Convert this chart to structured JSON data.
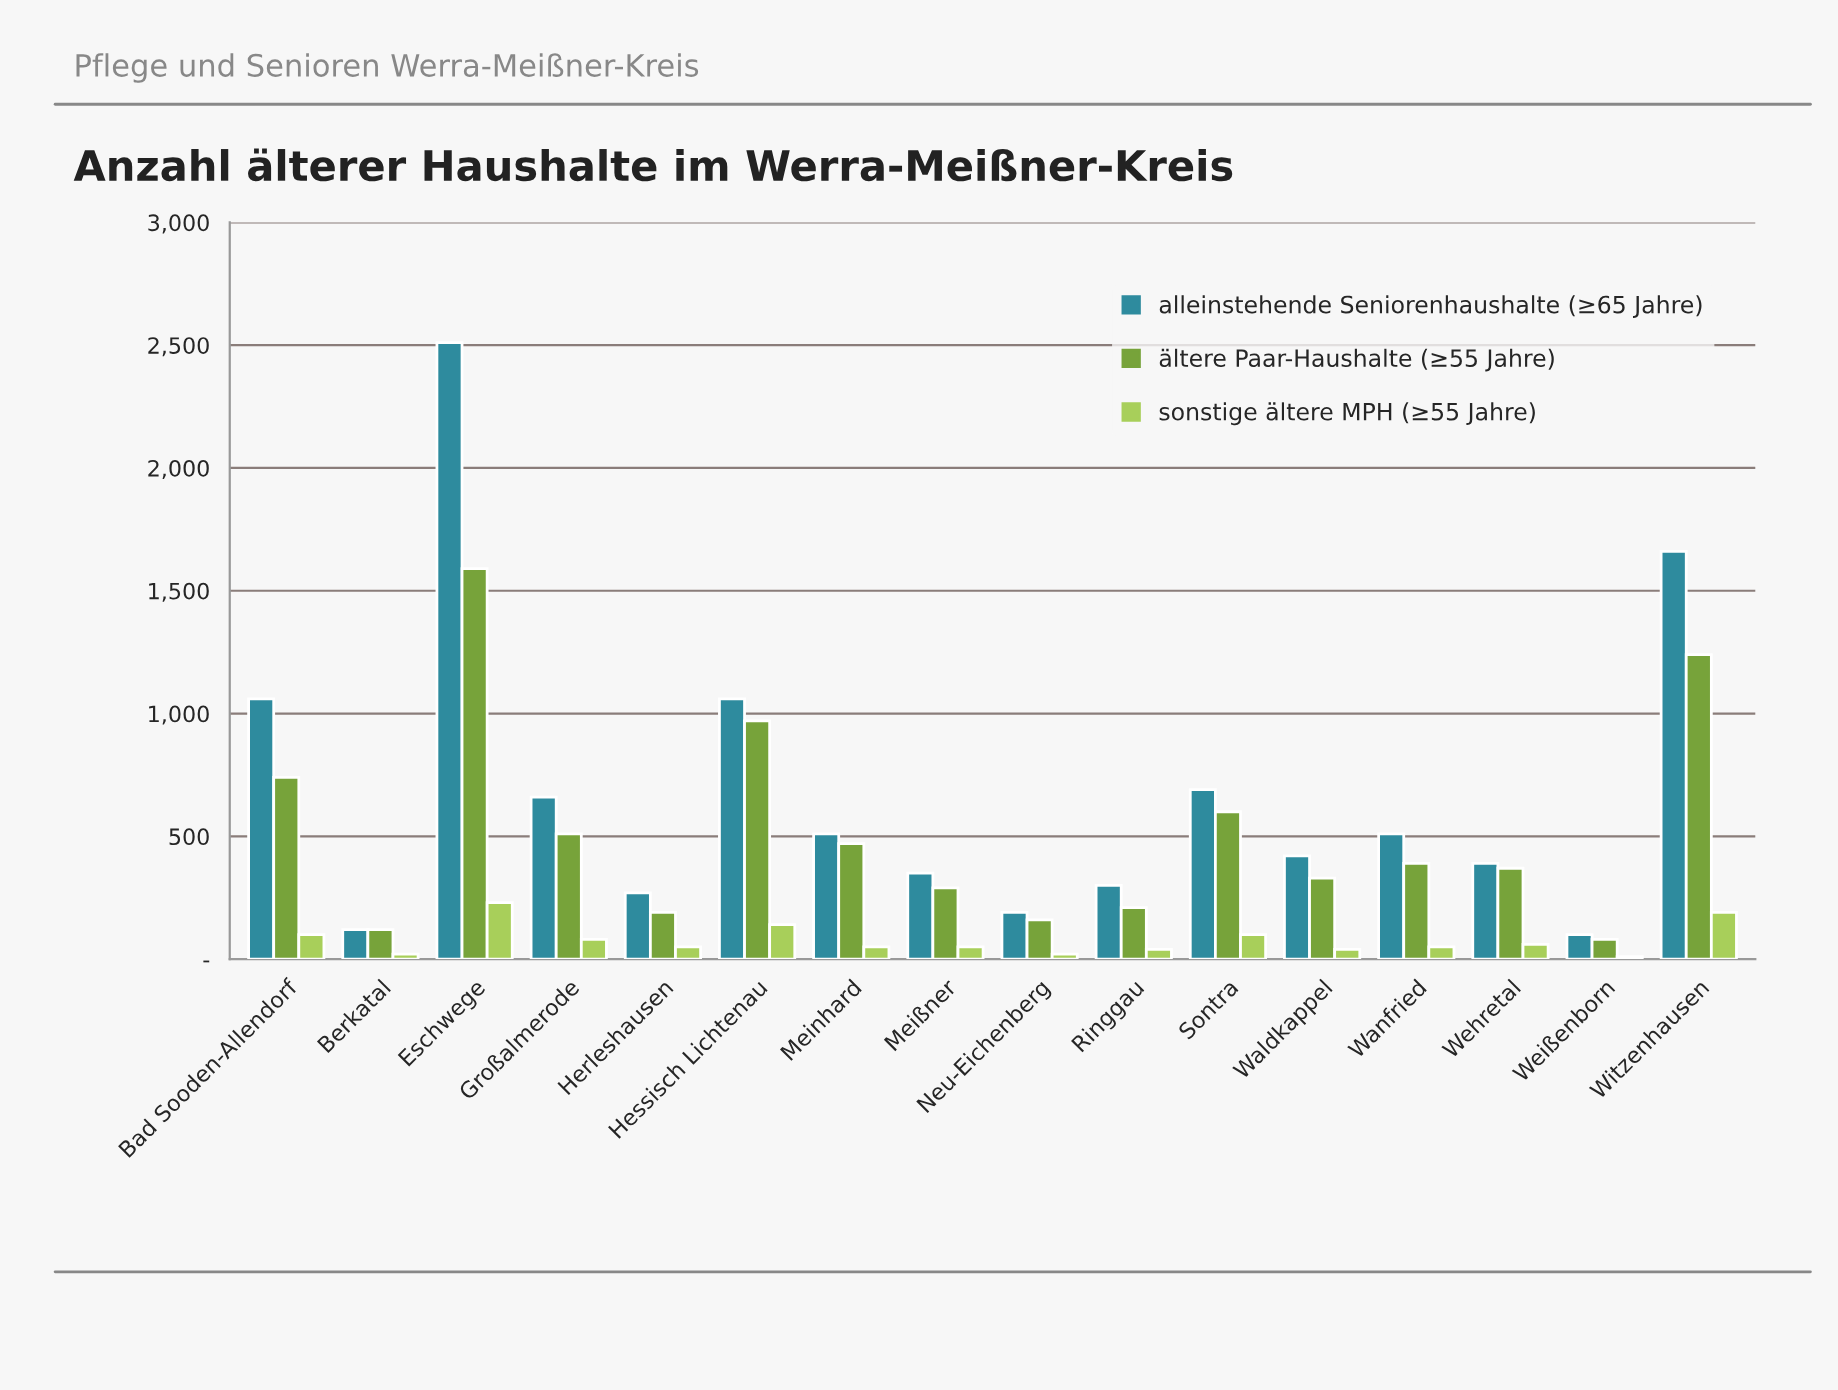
{
  "chart_data": {
    "type": "bar",
    "title": "Anzahl älterer Haushalte im Werra-Meißner-Kreis",
    "subtitle": "Pflege und Senioren Werra-Meißner-Kreis",
    "categories": [
      "Bad Sooden-Allendorf",
      "Berkatal",
      "Eschwege",
      "Großalmerode",
      "Herleshausen",
      "Hessisch Lichtenau",
      "Meinhard",
      "Meißner",
      "Neu-Eichenberg",
      "Ringgau",
      "Sontra",
      "Waldkappel",
      "Wanfried",
      "Wehretal",
      "Weißenborn",
      "Witzenhausen"
    ],
    "series": [
      {
        "name": "alleinstehende Seniorenhaushalte (≥65 Jahre)",
        "color": "#2e8b9e",
        "values": [
          1060,
          120,
          2510,
          660,
          270,
          1060,
          510,
          350,
          190,
          300,
          690,
          420,
          510,
          390,
          100,
          1660
        ]
      },
      {
        "name": "ältere Paar-Haushalte (≥55 Jahre)",
        "color": "#77a33a",
        "values": [
          740,
          120,
          1590,
          510,
          190,
          970,
          470,
          290,
          160,
          210,
          600,
          330,
          390,
          370,
          80,
          1240
        ]
      },
      {
        "name": "sonstige ältere MPH (≥55 Jahre)",
        "color": "#a8cf5a",
        "values": [
          100,
          20,
          230,
          80,
          50,
          140,
          50,
          50,
          20,
          40,
          100,
          40,
          50,
          60,
          10,
          190
        ]
      }
    ],
    "ylim": [
      0,
      3000
    ],
    "yticks": [
      {
        "value": 0,
        "label": "-"
      },
      {
        "value": 500,
        "label": "500"
      },
      {
        "value": 1000,
        "label": "1,000"
      },
      {
        "value": 1500,
        "label": "1,500"
      },
      {
        "value": 2000,
        "label": "2,000"
      },
      {
        "value": 2500,
        "label": "2,500"
      },
      {
        "value": 3000,
        "label": "3,000"
      }
    ],
    "grid": "y",
    "legend": "top right"
  }
}
